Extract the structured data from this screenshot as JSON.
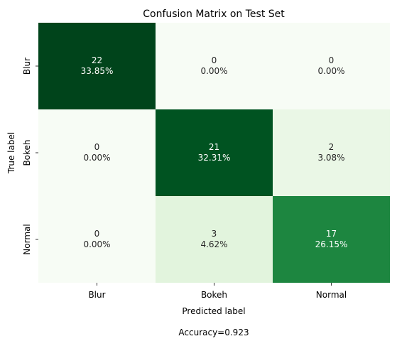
{
  "chart_data": {
    "type": "heatmap",
    "title": "Confusion Matrix on Test Set",
    "xlabel": "Predicted label",
    "ylabel": "True label",
    "x_categories": [
      "Blur",
      "Bokeh",
      "Normal"
    ],
    "y_categories": [
      "Blur",
      "Bokeh",
      "Normal"
    ],
    "values": [
      [
        22,
        0,
        0
      ],
      [
        0,
        21,
        2
      ],
      [
        0,
        3,
        17
      ]
    ],
    "percentages": [
      [
        "33.85%",
        "0.00%",
        "0.00%"
      ],
      [
        "0.00%",
        "32.31%",
        "3.08%"
      ],
      [
        "0.00%",
        "4.62%",
        "26.15%"
      ]
    ],
    "colormap": "Greens",
    "colorbar": false,
    "footer": "Accuracy=0.923"
  }
}
